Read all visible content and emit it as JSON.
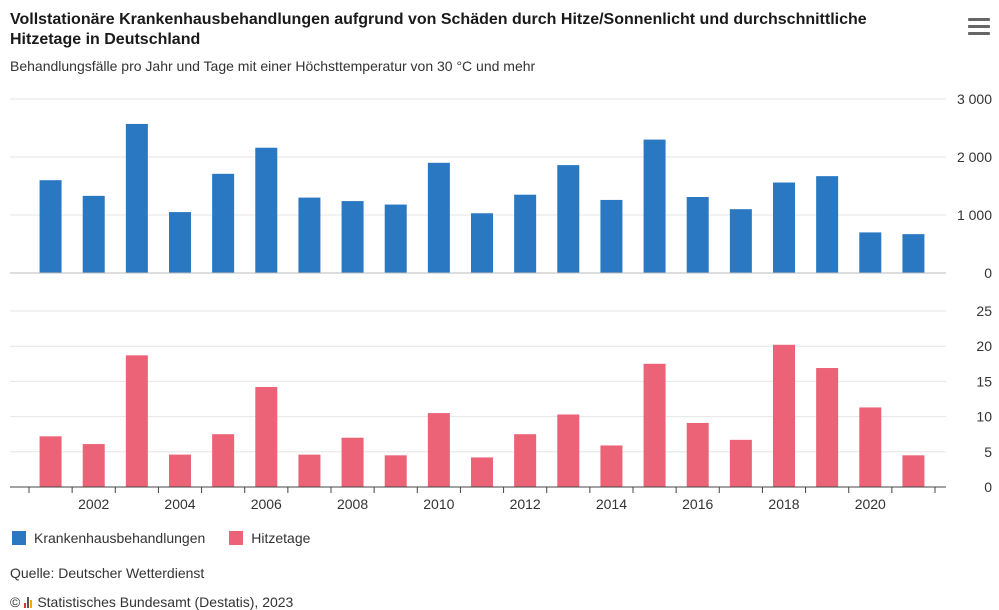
{
  "title": "Vollstationäre Krankenhausbehandlungen aufgrund von Schäden durch Hitze/Sonnenlicht und durchschnittliche Hitzetage in Deutschland",
  "subtitle": "Behandlungsfälle pro Jahr und Tage mit einer Höchsttemperatur von 30 °C und mehr",
  "menu_icon": "hamburger-menu-icon",
  "source": "Quelle: Deutscher Wetterdienst",
  "copyright_symbol": "©",
  "copyright_text": "Statistisches Bundesamt (Destatis), 2023",
  "colors": {
    "krankenhaus": "#2a78c1",
    "hitze": "#ec6276",
    "grid": "#e6e6e6",
    "axis": "#444444"
  },
  "chart_data": {
    "type": "bar",
    "categories": [
      "2001",
      "2002",
      "2003",
      "2004",
      "2005",
      "2006",
      "2007",
      "2008",
      "2009",
      "2010",
      "2011",
      "2012",
      "2013",
      "2014",
      "2015",
      "2016",
      "2017",
      "2018",
      "2019",
      "2020",
      "2021"
    ],
    "x_tick_labels": [
      "2002",
      "2004",
      "2006",
      "2008",
      "2010",
      "2012",
      "2014",
      "2016",
      "2018",
      "2020"
    ],
    "panels": [
      {
        "series_name": "Krankenhausbehandlungen",
        "values": [
          1600,
          1330,
          2570,
          1050,
          1710,
          2160,
          1300,
          1240,
          1180,
          1900,
          1030,
          1350,
          1860,
          1260,
          2300,
          1310,
          1100,
          1560,
          1670,
          700,
          670
        ],
        "ylim": [
          0,
          3000
        ],
        "y_ticks": [
          0,
          1000,
          2000,
          3000
        ],
        "y_tick_labels": [
          "0",
          "1 000",
          "2 000",
          "3 000"
        ]
      },
      {
        "series_name": "Hitzetage",
        "values": [
          7.2,
          6.1,
          18.7,
          4.6,
          7.5,
          14.2,
          4.6,
          7.0,
          4.5,
          10.5,
          4.2,
          7.5,
          10.3,
          5.9,
          17.5,
          9.1,
          6.7,
          20.2,
          16.9,
          11.3,
          4.5
        ],
        "ylim": [
          0,
          25
        ],
        "y_ticks": [
          0,
          5,
          10,
          15,
          20,
          25
        ],
        "y_tick_labels": [
          "0",
          "5",
          "10",
          "15",
          "20",
          "25"
        ]
      }
    ],
    "legend": [
      "Krankenhausbehandlungen",
      "Hitzetage"
    ],
    "legend_position": "bottom-left",
    "grid": true
  }
}
